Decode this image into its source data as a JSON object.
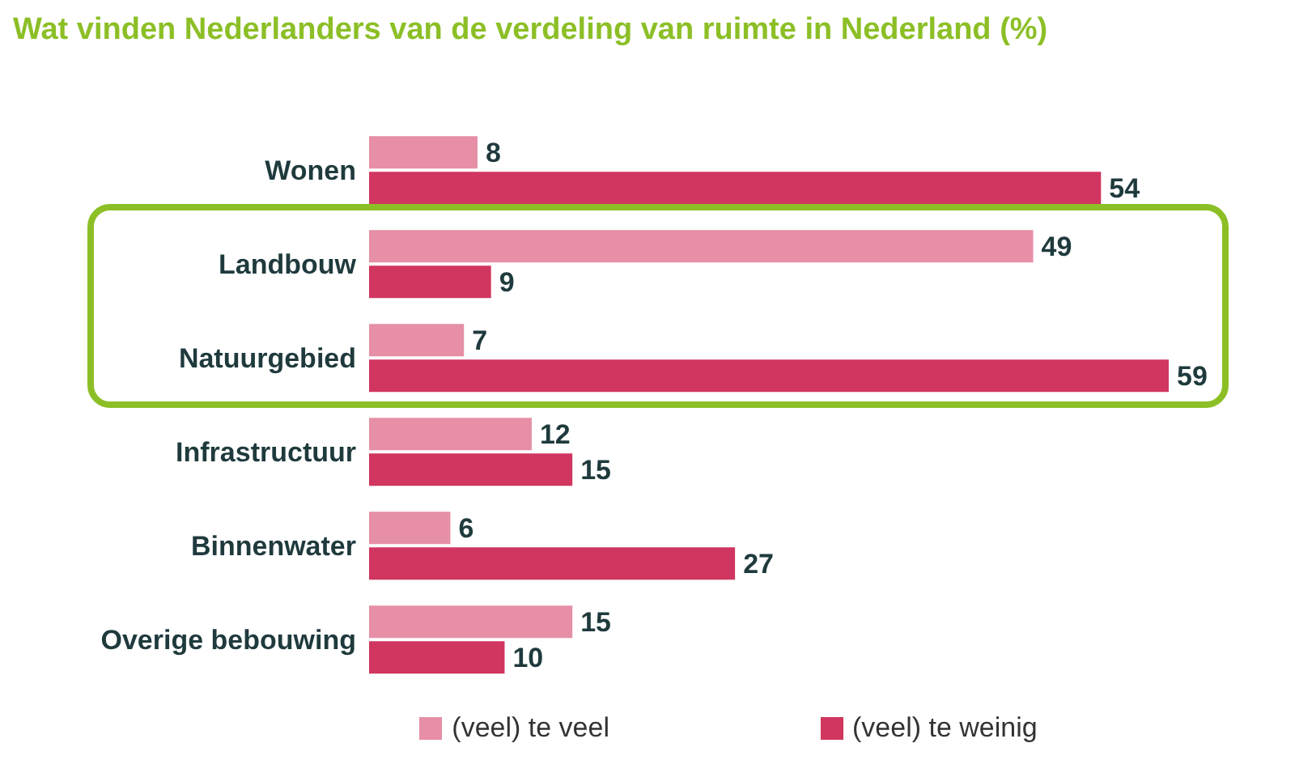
{
  "chart_data": {
    "type": "bar",
    "orientation": "horizontal",
    "title": "Wat vinden Nederlanders van de verdeling van ruimte in Nederland (%)",
    "categories": [
      "Wonen",
      "Landbouw",
      "Natuurgebied",
      "Infrastructuur",
      "Binnenwater",
      "Overige bebouwing"
    ],
    "series": [
      {
        "name": "(veel) te veel",
        "color": "#e68fa6",
        "values": [
          8,
          49,
          7,
          12,
          6,
          15
        ]
      },
      {
        "name": "(veel) te weinig",
        "color": "#d0365f",
        "values": [
          54,
          9,
          59,
          15,
          27,
          10
        ]
      }
    ],
    "data_labels": true,
    "legend": "bottom",
    "grid": false
  }
}
